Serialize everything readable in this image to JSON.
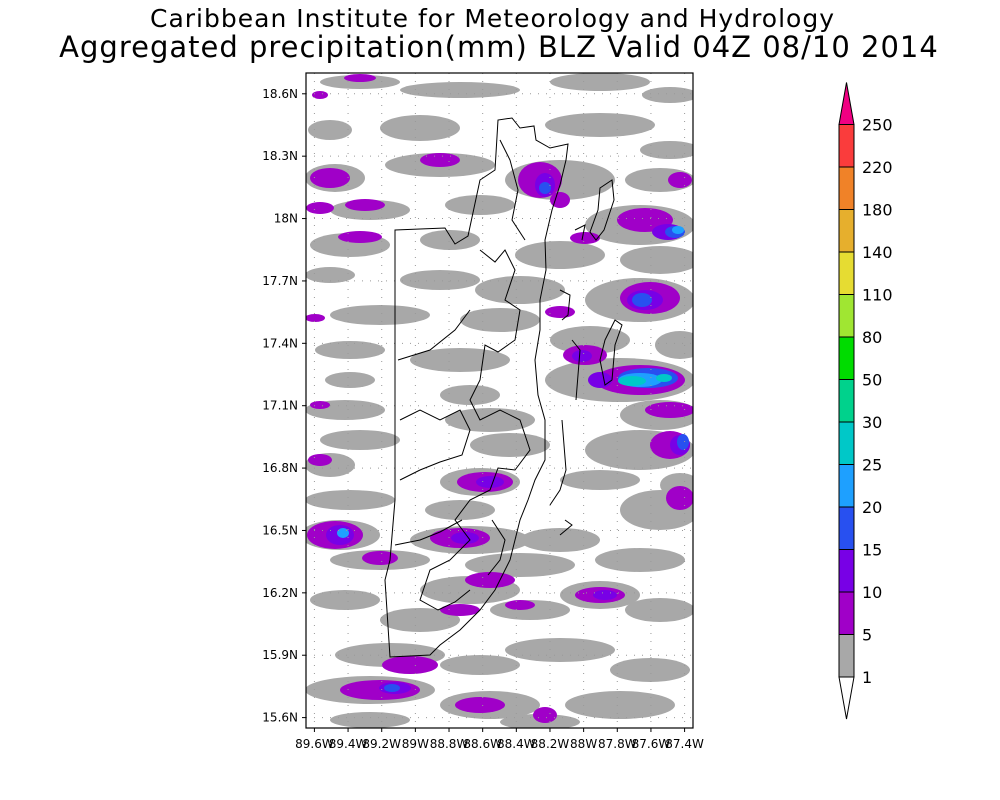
{
  "header": {
    "institute": "Caribbean Institute for Meteorology and Hydrology",
    "title": "Aggregated precipitation(mm) BLZ Valid 04Z 08/10 2014"
  },
  "map": {
    "lat_labels": [
      "18.6N",
      "18.3N",
      "18N",
      "17.7N",
      "17.4N",
      "17.1N",
      "16.8N",
      "16.5N",
      "16.2N",
      "15.9N",
      "15.6N"
    ],
    "lon_labels": [
      "89.6W",
      "89.4W",
      "89.2W",
      "89W",
      "88.8W",
      "88.6W",
      "88.4W",
      "88.2W",
      "88W",
      "87.8W",
      "87.6W",
      "87.4W"
    ],
    "lat_range": [
      15.55,
      18.7
    ],
    "lon_range": [
      89.65,
      87.35
    ],
    "grid": "dotted"
  },
  "colorbar": {
    "levels": [
      "1",
      "5",
      "10",
      "15",
      "20",
      "25",
      "30",
      "50",
      "80",
      "110",
      "140",
      "180",
      "220",
      "250"
    ],
    "colors": [
      "#a8a8a8",
      "#a000c8",
      "#7800e6",
      "#2850f0",
      "#1ea0ff",
      "#00c8c8",
      "#00d28c",
      "#00dc00",
      "#a0e632",
      "#e6dc32",
      "#e6af2d",
      "#f08228",
      "#fa3c3c",
      "#f00082"
    ]
  },
  "precip_colors": {
    "gray": "#a8a8a8",
    "purple": "#a000c8",
    "violet": "#7800e6",
    "blue": "#2850f0",
    "sky": "#1ea0ff",
    "cyan": "#00c8c8"
  }
}
